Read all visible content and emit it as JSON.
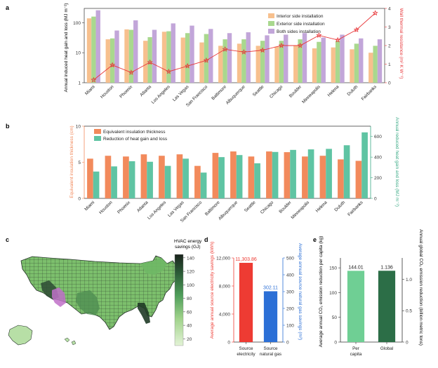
{
  "panels": {
    "a": "a",
    "b": "b",
    "c": "c",
    "d": "d",
    "e": "e"
  },
  "colors": {
    "interior": "#f7c08e",
    "exterior": "#a9d88e",
    "both": "#c2a6d9",
    "wall": "#e8373a",
    "thickness": "#f28a5c",
    "reduction": "#5fc4a3",
    "electricity": "#ee3b33",
    "natgas": "#2b6fd6",
    "percapita": "#6fcf94",
    "global": "#2c6e47",
    "map_low": "#d8efc8",
    "map_high": "#1d2a20"
  },
  "chart_data": [
    {
      "id": "a",
      "type": "bar",
      "categories": [
        "Miami",
        "Houston",
        "Phoenix",
        "Atlanta",
        "Los Angeles",
        "Las Vegas",
        "San Francisco",
        "Baltimore",
        "Albuquerque",
        "Seattle",
        "Chicago",
        "Boulder",
        "Minneapolis",
        "Helena",
        "Duluth",
        "Fairbanks"
      ],
      "series": [
        {
          "name": "Interior side installation",
          "values": [
            140,
            28,
            60,
            25,
            50,
            32,
            22,
            17,
            20,
            17,
            16,
            17,
            14,
            15,
            13,
            10
          ]
        },
        {
          "name": "Exterior side installation",
          "values": [
            160,
            30,
            58,
            33,
            52,
            45,
            42,
            28,
            28,
            25,
            25,
            28,
            23,
            25,
            20,
            17
          ]
        },
        {
          "name": "Both sides installation",
          "values": [
            260,
            55,
            120,
            58,
            95,
            80,
            62,
            45,
            48,
            38,
            40,
            45,
            32,
            40,
            30,
            28
          ]
        }
      ],
      "line_series": {
        "name": "Wall thermal resistance",
        "values": [
          0.15,
          0.95,
          0.55,
          1.1,
          0.6,
          0.9,
          1.2,
          1.8,
          1.65,
          1.75,
          2.0,
          2.0,
          2.55,
          2.3,
          2.85,
          3.75
        ]
      },
      "ylabel": "Annual induced heat gain and loss (MJ m⁻²)",
      "y2label": "Wall thermal resistance (m² K W⁻¹)",
      "yscale": "log",
      "ylim": [
        1,
        300
      ],
      "y2lim": [
        0,
        4
      ],
      "yticks": [
        "1",
        "10",
        "100"
      ],
      "y2ticks": [
        "0",
        "1",
        "2",
        "3",
        "4"
      ],
      "legend": "top-right"
    },
    {
      "id": "b",
      "type": "bar",
      "categories": [
        "Miami",
        "Houston",
        "Phoenix",
        "Atlanta",
        "Los Angeles",
        "Las Vegas",
        "San Francisco",
        "Baltimore",
        "Albuquerque",
        "Seattle",
        "Chicago",
        "Boulder",
        "Minneapolis",
        "Helena",
        "Duluth",
        "Fairbanks"
      ],
      "series": [
        {
          "name": "Equivalent insulation thickness",
          "values": [
            5.5,
            5.9,
            5.8,
            6.1,
            5.9,
            6.1,
            4.5,
            6.3,
            6.5,
            5.8,
            6.5,
            6.4,
            5.8,
            5.9,
            5.4,
            5.2
          ],
          "axis": "left"
        },
        {
          "name": "Reduction of heat gain and loss",
          "values": [
            260,
            310,
            360,
            355,
            315,
            385,
            250,
            400,
            420,
            340,
            450,
            470,
            475,
            480,
            515,
            640
          ],
          "axis": "right"
        }
      ],
      "ylabel": "Equivalent insulation thickness (cm)",
      "y2label": "Annual reduced heat gain and loss (MJ m⁻²)",
      "ylim": [
        0,
        10
      ],
      "y2lim": [
        0,
        700
      ],
      "yticks": [
        "0",
        "5",
        "10"
      ],
      "y2ticks": [
        "0",
        "200",
        "400",
        "600"
      ],
      "legend": "top-left"
    },
    {
      "id": "d",
      "type": "bar",
      "categories": [
        "Source electricity",
        "Source natural gas"
      ],
      "category_lines": [
        [
          "Source",
          "electricity"
        ],
        [
          "Source",
          "natural gas"
        ]
      ],
      "series": [
        {
          "name": "electricity",
          "values": [
            11303.86,
            null
          ],
          "axis": "left"
        },
        {
          "name": "natural gas",
          "values": [
            null,
            302.11
          ],
          "axis": "right"
        }
      ],
      "data_labels": [
        "11,303.86",
        "302.11"
      ],
      "ylabel": "Average annual source electricity savings (kWh)",
      "y2label": "Average annual source natural gas savings (m³)",
      "ylim": [
        0,
        12000
      ],
      "y2lim": [
        0,
        500
      ],
      "yticks": [
        "0",
        "4,000",
        "8,000",
        "12,000"
      ],
      "y2ticks": [
        "0",
        "100",
        "200",
        "300",
        "400",
        "500"
      ]
    },
    {
      "id": "e",
      "type": "bar",
      "categories": [
        "Per capita",
        "Global"
      ],
      "category_lines": [
        [
          "Per",
          "capita"
        ],
        [
          "Global"
        ]
      ],
      "series": [
        {
          "name": "Per capita",
          "values": [
            144.01,
            null
          ],
          "axis": "left"
        },
        {
          "name": "Global",
          "values": [
            null,
            1.136
          ],
          "axis": "right"
        }
      ],
      "data_labels": [
        "144.01",
        "1.136"
      ],
      "ylabel": "Average annual CO₂ emission reduction per capita (kg)",
      "y2label": "Annual global CO₂ emission reduction (billion metric tons)",
      "ylim": [
        0,
        170
      ],
      "y2lim": [
        0,
        1.34
      ],
      "yticks": [
        "0",
        "50",
        "100",
        "150"
      ],
      "y2ticks": [
        "0",
        "0.5",
        "1.0"
      ]
    }
  ],
  "map": {
    "colorbar_title_lines": [
      "HVAC energy",
      "savings (GJ)"
    ],
    "colorbar_ticks": [
      "20",
      "40",
      "60",
      "80",
      "100",
      "120",
      "140"
    ],
    "colorbar_range": [
      10,
      145
    ]
  }
}
